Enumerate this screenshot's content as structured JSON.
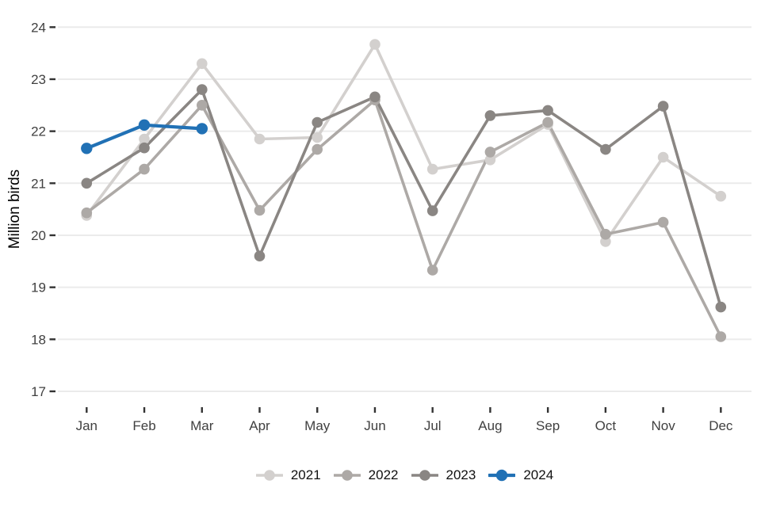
{
  "chart_data": {
    "type": "line",
    "title": "",
    "xlabel": "",
    "ylabel": "Million birds",
    "ylim": [
      17,
      24
    ],
    "yticks": [
      17,
      18,
      19,
      20,
      21,
      22,
      23,
      24
    ],
    "grid": true,
    "legend_position": "bottom",
    "categories": [
      "Jan",
      "Feb",
      "Mar",
      "Apr",
      "May",
      "Jun",
      "Jul",
      "Aug",
      "Sep",
      "Oct",
      "Nov",
      "Dec"
    ],
    "series": [
      {
        "name": "2021",
        "color": "#d3d0ce",
        "values": [
          20.38,
          21.85,
          23.3,
          21.85,
          21.88,
          23.67,
          21.27,
          21.45,
          22.13,
          19.88,
          21.5,
          20.75
        ]
      },
      {
        "name": "2022",
        "color": "#ada9a6",
        "values": [
          20.43,
          21.27,
          22.5,
          20.48,
          21.65,
          22.6,
          19.33,
          21.6,
          22.17,
          20.02,
          20.25,
          18.05
        ]
      },
      {
        "name": "2023",
        "color": "#8a8683",
        "values": [
          21.0,
          21.68,
          22.8,
          19.6,
          22.17,
          22.66,
          20.47,
          22.3,
          22.4,
          21.65,
          22.48,
          18.62
        ]
      },
      {
        "name": "2024",
        "color": "#2171b5",
        "values": [
          21.67,
          22.12,
          22.05,
          null,
          null,
          null,
          null,
          null,
          null,
          null,
          null,
          null
        ]
      }
    ],
    "colors": {
      "gridline": "#ebebeb",
      "tick": "#333333",
      "axis_text": "#404040",
      "accent": "#2171b5"
    }
  }
}
